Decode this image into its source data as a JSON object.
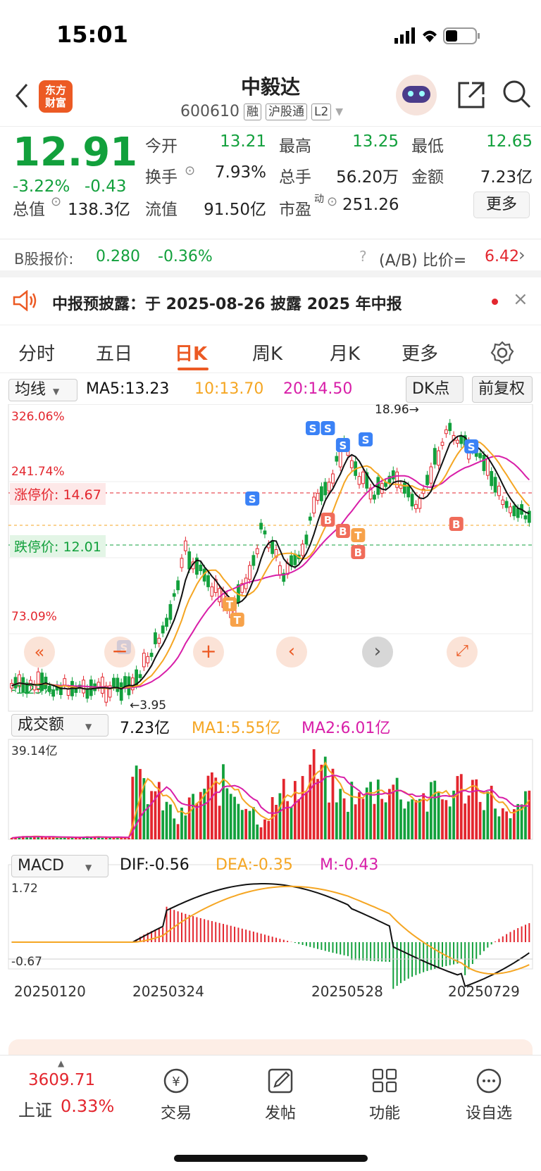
{
  "status_bar": {
    "time": "15:01"
  },
  "header": {
    "logo_text": "东方财富",
    "stock_name": "中毅达",
    "stock_code": "600610",
    "tags": [
      "融",
      "沪股通",
      "L2"
    ]
  },
  "quote": {
    "price": "12.91",
    "change_pct": "-3.22%",
    "change": "-0.43",
    "open_label": "今开",
    "open": "13.21",
    "high_label": "最高",
    "high": "13.25",
    "low_label": "最低",
    "low": "12.65",
    "turnover_label": "换手",
    "turnover": "7.93%",
    "volume_label": "总手",
    "volume": "56.20万",
    "amount_label": "金额",
    "amount": "7.23亿",
    "total_mv_label": "总值",
    "total_mv": "138.3亿",
    "float_mv_label": "流值",
    "float_mv": "91.50亿",
    "pe_label": "市盈",
    "pe_sup": "动",
    "pe": "251.26",
    "more_button": "更多"
  },
  "b_share": {
    "label": "B股报价:",
    "price": "0.280",
    "change_pct": "-0.36%",
    "ratio_label": "(A/B) 比价=",
    "ratio": "6.42"
  },
  "notice": {
    "text": "中报预披露：于 2025-08-26 披露 2025 年中报"
  },
  "tabs": [
    "分时",
    "五日",
    "日K",
    "周K",
    "月K",
    "更多"
  ],
  "active_tab": "日K",
  "kline": {
    "ma_selector": "均线",
    "ma5": "MA5:13.23",
    "ma10": "10:13.70",
    "ma20": "20:14.50",
    "dk_button": "DK点",
    "adjust_button": "前复权",
    "y_labels": [
      "326.06%",
      "241.74%",
      "73.09%",
      "-1.23%"
    ],
    "limit_up_label": "涨停价:",
    "limit_up": "14.67",
    "limit_down_label": "跌停价:",
    "limit_down": "12.01",
    "max_label": "18.96",
    "min_label": "3.95",
    "colors": {
      "up": "#e3262e",
      "down": "#12a03c",
      "ma5": "#111111",
      "ma10": "#f5a623",
      "ma20": "#d81ea8"
    }
  },
  "volume": {
    "selector": "成交额",
    "value": "7.23亿",
    "ma1": "MA1:5.55亿",
    "ma2": "MA2:6.01亿",
    "max_label": "39.14亿"
  },
  "macd": {
    "selector": "MACD",
    "dif": "DIF:-0.56",
    "dea": "DEA:-0.35",
    "m": "M:-0.43",
    "y_top": "1.72",
    "y_bottom": "-0.67"
  },
  "dates": [
    "20250120",
    "20250324",
    "20250528",
    "20250729"
  ],
  "bottom_nav": {
    "index_value": "3609.71",
    "index_name": "上证",
    "index_change": "0.33%",
    "items": [
      "交易",
      "发帖",
      "功能",
      "设自选"
    ]
  }
}
